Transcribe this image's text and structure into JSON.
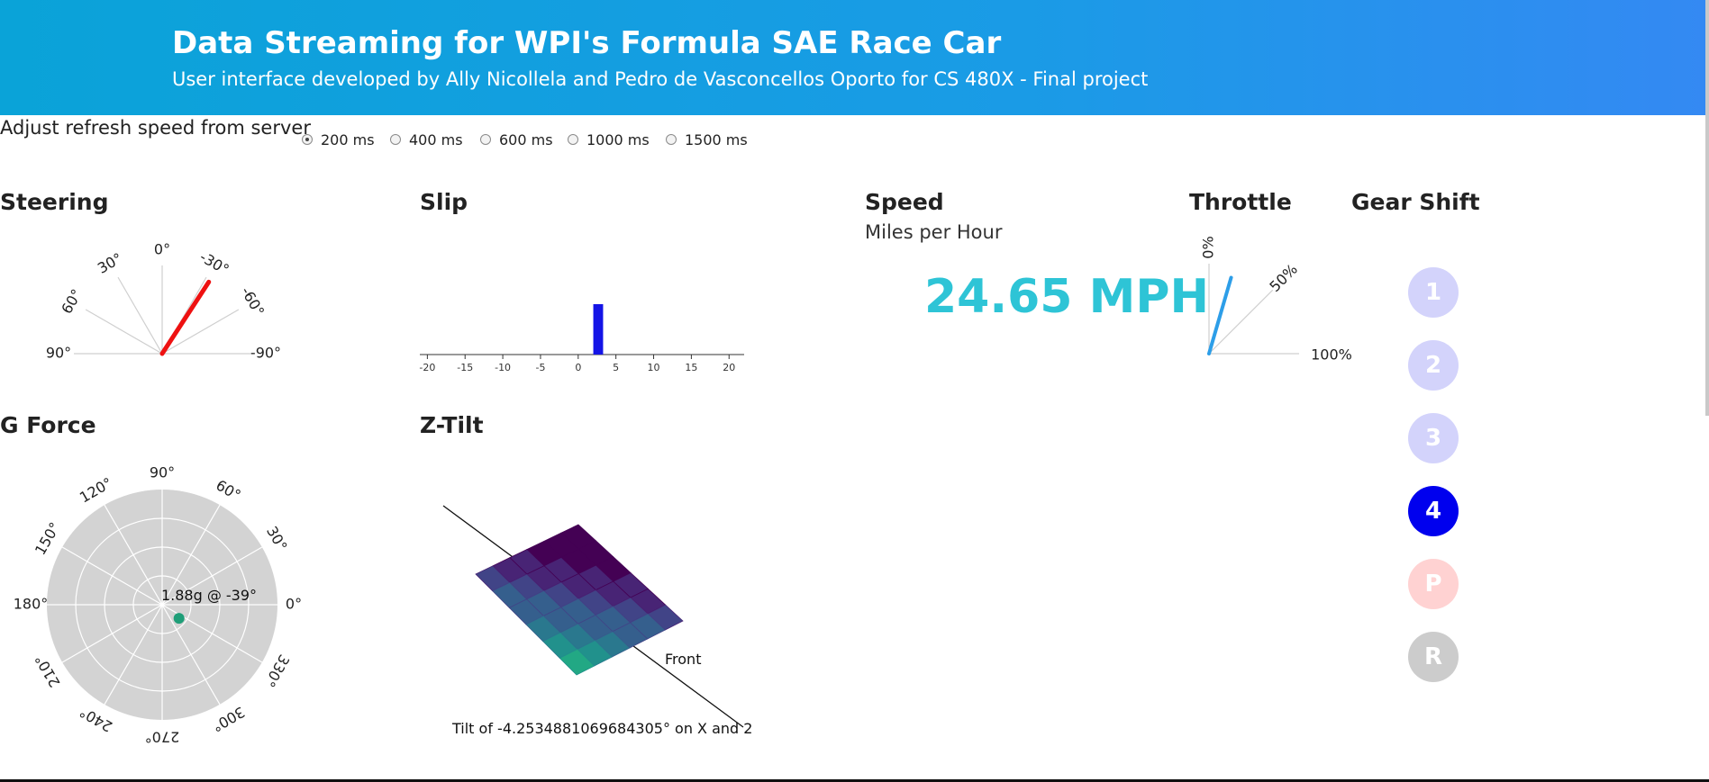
{
  "header": {
    "title": "Data Streaming for WPI's Formula SAE Race Car",
    "subtitle": "User interface developed by Ally Nicollela and Pedro de Vasconcellos Oporto for CS 480X - Final project"
  },
  "refresh": {
    "label": "Adjust refresh speed from server",
    "options": [
      "200 ms",
      "400 ms",
      "600 ms",
      "1000 ms",
      "1500 ms"
    ],
    "selected": "200 ms"
  },
  "steering": {
    "title": "Steering",
    "ticks": [
      "90°",
      "60°",
      "30°",
      "0°",
      "-30°",
      "-60°",
      "-90°"
    ],
    "value_deg": -33,
    "needle_color": "#ee1111"
  },
  "slip": {
    "title": "Slip",
    "ticks": [
      "-20",
      "-15",
      "-10",
      "-5",
      "0",
      "5",
      "10",
      "15",
      "20"
    ],
    "xlim": [
      -21,
      22
    ],
    "bar_from": 2,
    "bar_to": 3.3,
    "bar_color": "#1414e6"
  },
  "speed": {
    "title": "Speed",
    "unit_label": "Miles per Hour",
    "value_text": "24.65 MPH",
    "color": "#2ec4d6"
  },
  "throttle": {
    "title": "Throttle",
    "ticks": [
      "0%",
      "50%",
      "100%"
    ],
    "value_percent": 18,
    "needle_color": "#2d9ee8"
  },
  "gear_shift": {
    "title": "Gear Shift",
    "gears": [
      {
        "label": "1",
        "color": "#d3d3fb"
      },
      {
        "label": "2",
        "color": "#d3d3fb"
      },
      {
        "label": "3",
        "color": "#d3d3fb"
      },
      {
        "label": "4",
        "color": "#0000ee"
      },
      {
        "label": "P",
        "color": "#ffd2d2"
      },
      {
        "label": "R",
        "color": "#cccccc"
      }
    ],
    "active": "4"
  },
  "g_force": {
    "title": "G Force",
    "angle_labels": [
      "0°",
      "30°",
      "60°",
      "90°",
      "120°",
      "150°",
      "180°",
      "210°",
      "240°",
      "270°",
      "300°",
      "330°"
    ],
    "readout": "1.88g @ -39°",
    "magnitude_g": 1.88,
    "angle_deg": -39,
    "max_g": 10,
    "dot_color": "#1f9e78"
  },
  "z_tilt": {
    "title": "Z-Tilt",
    "front_label": "Front",
    "caption": "Tilt of -4.2534881069684305° on X and 2"
  }
}
